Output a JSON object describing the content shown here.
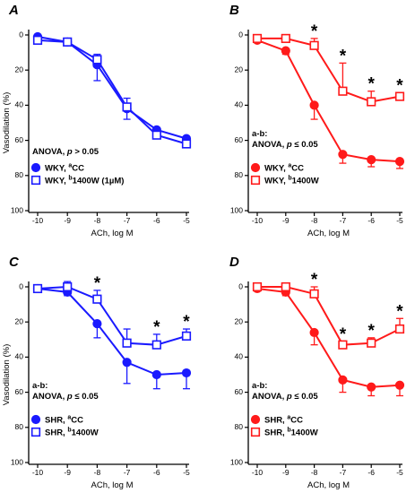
{
  "ylabel": "Vasodilation (%)",
  "xlabel": "ACh, log M",
  "x_ticks": [
    "-10",
    "-9",
    "-8",
    "-7",
    "-6",
    "-5"
  ],
  "y_ticks": [
    "0",
    "20",
    "40",
    "60",
    "80",
    "100"
  ],
  "colors": {
    "blue": "#1a1aff",
    "red": "#ff1a1a"
  },
  "chart_data": [
    {
      "panel": "A",
      "type": "line",
      "color": "#1a1aff",
      "x": [
        -10,
        -9,
        -8,
        -7,
        -6,
        -5
      ],
      "ylim": [
        100,
        0
      ],
      "stat_line1": "",
      "stat_line2": "ANOVA, p > 0.05",
      "legend": [
        {
          "label": "WKY, ",
          "sup": "a",
          "suffix": "CC"
        },
        {
          "label": "WKY, ",
          "sup": "b",
          "suffix": "1400W (1µM)"
        }
      ],
      "series": [
        {
          "name": "WKY, aCC",
          "marker": "filled-circle",
          "values": [
            1,
            4,
            17,
            42,
            54,
            59
          ],
          "err": [
            1,
            2,
            9,
            6,
            3,
            2
          ]
        },
        {
          "name": "WKY, b1400W (1µM)",
          "marker": "open-square",
          "values": [
            3,
            4,
            14,
            41,
            57,
            62
          ],
          "err": [
            1,
            2,
            3,
            5,
            4,
            2
          ]
        }
      ],
      "significant": []
    },
    {
      "panel": "B",
      "type": "line",
      "color": "#ff1a1a",
      "x": [
        -10,
        -9,
        -8,
        -7,
        -6,
        -5
      ],
      "ylim": [
        100,
        0
      ],
      "stat_line1": "a-b:",
      "stat_line2": "ANOVA, p ≤ 0.05",
      "legend": [
        {
          "label": "WKY, ",
          "sup": "a",
          "suffix": "CC"
        },
        {
          "label": "WKY, ",
          "sup": "b",
          "suffix": "1400W"
        }
      ],
      "series": [
        {
          "name": "WKY, aCC",
          "marker": "filled-circle",
          "values": [
            3,
            9,
            40,
            68,
            71,
            72
          ],
          "err": [
            1,
            2,
            8,
            5,
            4,
            4
          ]
        },
        {
          "name": "WKY, b1400W",
          "marker": "open-square",
          "values": [
            2,
            2,
            6,
            32,
            38,
            35
          ],
          "err": [
            1,
            1,
            4,
            16,
            6,
            2
          ]
        }
      ],
      "significant": [
        -8,
        -7,
        -6,
        -5
      ]
    },
    {
      "panel": "C",
      "type": "line",
      "color": "#1a1aff",
      "x": [
        -10,
        -9,
        -8,
        -7,
        -6,
        -5
      ],
      "ylim": [
        100,
        0
      ],
      "stat_line1": "a-b:",
      "stat_line2": "ANOVA, p ≤ 0.05",
      "legend": [
        {
          "label": "SHR, ",
          "sup": "a",
          "suffix": "CC"
        },
        {
          "label": "SHR, ",
          "sup": "b",
          "suffix": "1400W"
        }
      ],
      "series": [
        {
          "name": "SHR, aCC",
          "marker": "filled-circle",
          "values": [
            1,
            3,
            21,
            43,
            50,
            49
          ],
          "err": [
            1,
            2,
            8,
            12,
            8,
            9
          ]
        },
        {
          "name": "SHR, b1400W",
          "marker": "open-square",
          "values": [
            1,
            0,
            7,
            32,
            33,
            28
          ],
          "err": [
            1,
            3,
            5,
            8,
            6,
            4
          ]
        }
      ],
      "significant": [
        -8,
        -6,
        -5
      ]
    },
    {
      "panel": "D",
      "type": "line",
      "color": "#ff1a1a",
      "x": [
        -10,
        -9,
        -8,
        -7,
        -6,
        -5
      ],
      "ylim": [
        100,
        0
      ],
      "stat_line1": "a-b:",
      "stat_line2": "ANOVA, p ≤ 0.05",
      "legend": [
        {
          "label": "SHR, ",
          "sup": "a",
          "suffix": "CC"
        },
        {
          "label": "SHR, ",
          "sup": "b",
          "suffix": "1400W"
        }
      ],
      "series": [
        {
          "name": "SHR, aCC",
          "marker": "filled-circle",
          "values": [
            1,
            3,
            26,
            53,
            57,
            56
          ],
          "err": [
            1,
            2,
            7,
            7,
            5,
            6
          ]
        },
        {
          "name": "SHR, b1400W",
          "marker": "open-square",
          "values": [
            0,
            0,
            4,
            33,
            32,
            24
          ],
          "err": [
            1,
            1,
            4,
            2,
            3,
            6
          ]
        }
      ],
      "significant": [
        -8,
        -7,
        -6,
        -5
      ]
    }
  ]
}
